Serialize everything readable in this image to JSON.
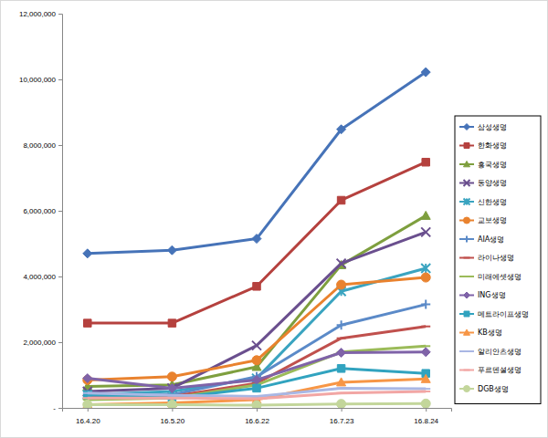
{
  "chart_data": {
    "type": "line",
    "categories": [
      "16.4.20",
      "16.5.20",
      "16.6.22",
      "16.7.23",
      "16.8.24"
    ],
    "ylim": [
      0,
      12000000
    ],
    "yticks": [
      {
        "value": 0,
        "label": "-"
      },
      {
        "value": 2000000,
        "label": "2,000,000"
      },
      {
        "value": 4000000,
        "label": "4,000,000"
      },
      {
        "value": 6000000,
        "label": "6,000,000"
      },
      {
        "value": 8000000,
        "label": "8,000,000"
      },
      {
        "value": 10000000,
        "label": "10,000,000"
      },
      {
        "value": 12000000,
        "label": "12,000,000"
      }
    ],
    "grid": false,
    "legend": "right",
    "series": [
      {
        "name": "삼성생명",
        "color": "#4673B8",
        "marker": "diamond",
        "values": [
          4700000,
          4800000,
          5150000,
          8480000,
          10220000
        ]
      },
      {
        "name": "한화생명",
        "color": "#B5413E",
        "marker": "square",
        "values": [
          2580000,
          2580000,
          3700000,
          6320000,
          7480000
        ]
      },
      {
        "name": "흥국생명",
        "color": "#7E9F3E",
        "marker": "triangle",
        "values": [
          650000,
          700000,
          1250000,
          4350000,
          5850000
        ]
      },
      {
        "name": "동양생명",
        "color": "#6A4F8E",
        "marker": "x",
        "values": [
          500000,
          600000,
          1900000,
          4400000,
          5350000
        ]
      },
      {
        "name": "신한생명",
        "color": "#3AA4C0",
        "marker": "star",
        "values": [
          400000,
          500000,
          900000,
          3550000,
          4250000
        ]
      },
      {
        "name": "교보생명",
        "color": "#E9822E",
        "marker": "circle",
        "values": [
          850000,
          950000,
          1450000,
          3750000,
          3970000
        ]
      },
      {
        "name": "AIA생명",
        "color": "#5B8AC8",
        "marker": "plus",
        "values": [
          350000,
          400000,
          950000,
          2520000,
          3150000
        ]
      },
      {
        "name": "라이나생명",
        "color": "#C0504D",
        "marker": "dash",
        "values": [
          300000,
          350000,
          750000,
          2120000,
          2480000
        ]
      },
      {
        "name": "미래에셋생명",
        "color": "#9BBB59",
        "marker": "dash",
        "values": [
          250000,
          300000,
          700000,
          1700000,
          1880000
        ]
      },
      {
        "name": "ING생명",
        "color": "#7F63A8",
        "marker": "diamond",
        "values": [
          900000,
          600000,
          850000,
          1680000,
          1700000
        ]
      },
      {
        "name": "메트라이프생명",
        "color": "#31A3BF",
        "marker": "square",
        "values": [
          400000,
          300000,
          600000,
          1200000,
          1050000
        ]
      },
      {
        "name": "KB생명",
        "color": "#F79646",
        "marker": "triangle",
        "values": [
          100000,
          150000,
          250000,
          780000,
          880000
        ]
      },
      {
        "name": "알리안츠생명",
        "color": "#A9B7E4",
        "marker": "dash",
        "values": [
          450000,
          380000,
          350000,
          600000,
          580000
        ]
      },
      {
        "name": "푸르덴셜생명",
        "color": "#F2A6A4",
        "marker": "dash",
        "values": [
          300000,
          300000,
          280000,
          450000,
          500000
        ]
      },
      {
        "name": "DGB생명",
        "color": "#C3D69B",
        "marker": "circle",
        "values": [
          100000,
          100000,
          80000,
          120000,
          130000
        ]
      }
    ]
  }
}
